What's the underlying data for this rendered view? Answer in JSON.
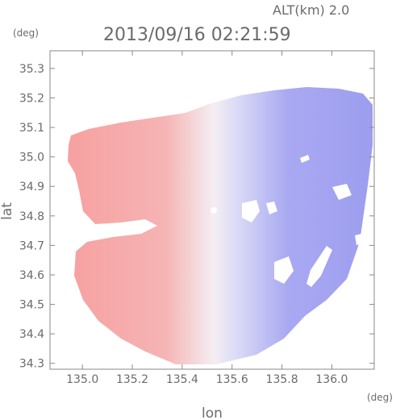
{
  "header": {
    "altitude_label": "ALT(km)  2.0",
    "timestamp": "2013/09/16 02:21:59",
    "y_unit": "(deg)",
    "x_unit": "(deg)"
  },
  "chart_data": {
    "type": "heatmap",
    "title": "2013/09/16 02:21:59",
    "xlabel": "lon",
    "ylabel": "lat",
    "xlim": [
      134.87,
      136.17
    ],
    "ylim": [
      34.28,
      35.36
    ],
    "x_ticks": [
      "135.0",
      "135.2",
      "135.4",
      "135.6",
      "135.8",
      "136.0"
    ],
    "y_ticks": [
      "34.3",
      "34.4",
      "34.5",
      "34.6",
      "34.7",
      "34.8",
      "34.9",
      "35.0",
      "35.1",
      "35.2",
      "35.3"
    ],
    "grid": false,
    "colors": {
      "negative": "#7f7ff0",
      "near_zero": "#f4f4fb",
      "positive": "#f08a8a",
      "frame": "#8a8a8a"
    }
  }
}
